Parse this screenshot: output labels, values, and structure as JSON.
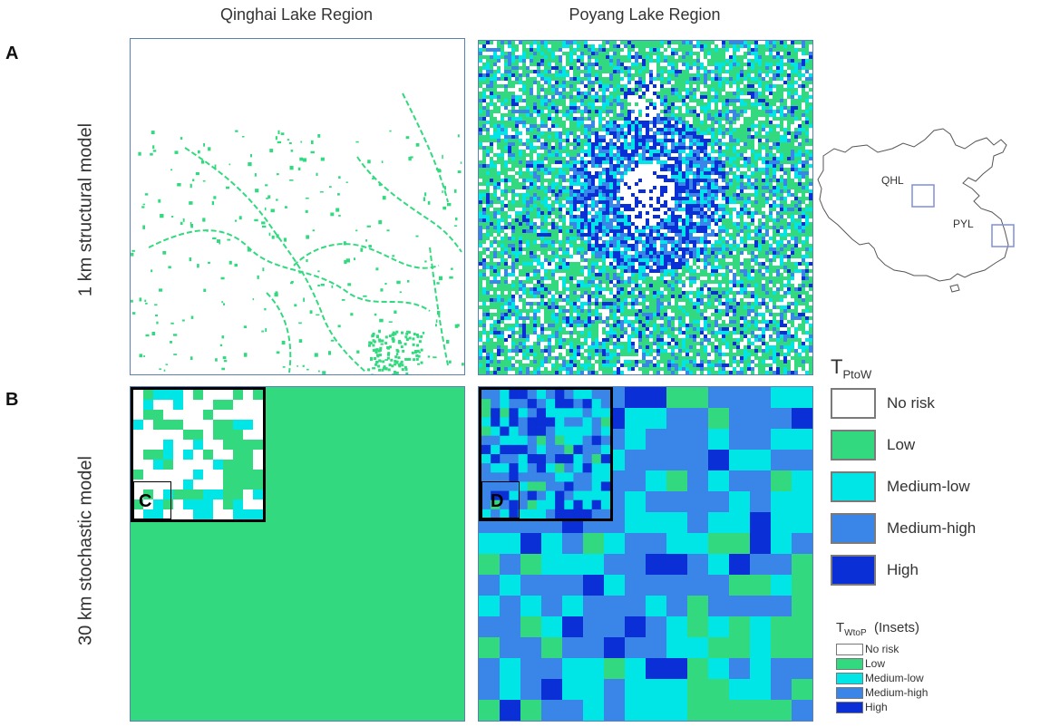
{
  "columns": {
    "left_title": "Qinghai Lake Region",
    "right_title": "Poyang Lake Region"
  },
  "rows": {
    "a_letter": "A",
    "a_label": "1 km structural model",
    "b_letter": "B",
    "b_label": "30 km stochastic model"
  },
  "insets": {
    "c_letter": "C",
    "d_letter": "D"
  },
  "china_map": {
    "qhl_label": "QHL",
    "pyl_label": "PYL"
  },
  "colors": {
    "no_risk": "#ffffff",
    "low": "#33d97f",
    "medium_low": "#00e5e5",
    "medium_high": "#3a85e8",
    "high": "#0a2fd6",
    "box_outline": "#7f8fd8"
  },
  "legend_main": {
    "title_main": "T",
    "title_sub": "PtoW",
    "items": [
      "No risk",
      "Low",
      "Medium-low",
      "Medium-high",
      "High"
    ]
  },
  "legend_insets": {
    "title_main": "T",
    "title_sub": "WtoP",
    "title_suffix": "(Insets)",
    "items": [
      "No risk",
      "Low",
      "Medium-low",
      "Medium-high",
      "High"
    ]
  }
}
